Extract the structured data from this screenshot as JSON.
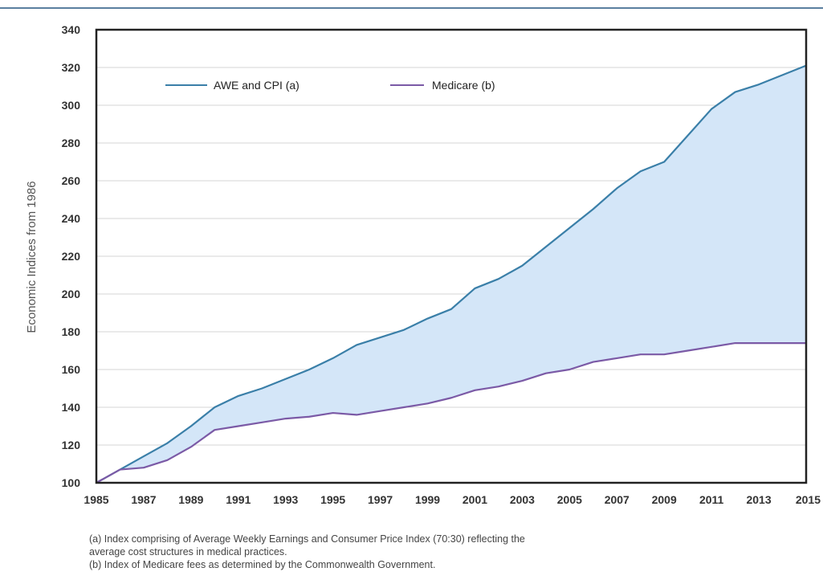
{
  "chart_data": {
    "type": "area",
    "title": "",
    "xlabel": "",
    "ylabel": "Economic Indices from 1986",
    "xlim": [
      1985,
      2015
    ],
    "ylim": [
      100,
      340
    ],
    "x_ticks": [
      "1985",
      "1987",
      "1989",
      "1991",
      "1993",
      "1995",
      "1997",
      "1999",
      "2001",
      "2003",
      "2005",
      "2007",
      "2009",
      "2011",
      "2013",
      "2015"
    ],
    "y_ticks": [
      "100",
      "120",
      "140",
      "160",
      "180",
      "200",
      "220",
      "240",
      "260",
      "280",
      "300",
      "320",
      "340"
    ],
    "x": [
      1985,
      1986,
      1987,
      1988,
      1989,
      1990,
      1991,
      1992,
      1993,
      1994,
      1995,
      1996,
      1997,
      1998,
      1999,
      2000,
      2001,
      2002,
      2003,
      2004,
      2005,
      2006,
      2007,
      2008,
      2009,
      2010,
      2011,
      2012,
      2013,
      2014,
      2015
    ],
    "series": [
      {
        "name": "AWE and CPI (a)",
        "color": "#3a7fa8",
        "values": [
          100,
          107,
          114,
          121,
          130,
          140,
          146,
          150,
          155,
          160,
          166,
          173,
          177,
          181,
          187,
          192,
          203,
          208,
          215,
          225,
          235,
          245,
          256,
          265,
          270,
          284,
          298,
          307,
          311,
          316,
          321
        ]
      },
      {
        "name": "Medicare (b)",
        "color": "#7b5aa6",
        "values": [
          100,
          107,
          108,
          112,
          119,
          128,
          130,
          132,
          134,
          135,
          137,
          136,
          138,
          140,
          142,
          145,
          149,
          151,
          154,
          158,
          160,
          164,
          166,
          168,
          168,
          170,
          172,
          174,
          174,
          174,
          174
        ]
      }
    ],
    "fill_between_color": "#d4e6f8",
    "grid": true,
    "legend_position": "top-left"
  },
  "footnotes": [
    "(a) Index comprising of Average Weekly Earnings and Consumer Price Index (70:30) reflecting the",
    "average cost structures in medical practices.",
    "(b) Index of Medicare fees as determined by the Commonwealth Government."
  ]
}
